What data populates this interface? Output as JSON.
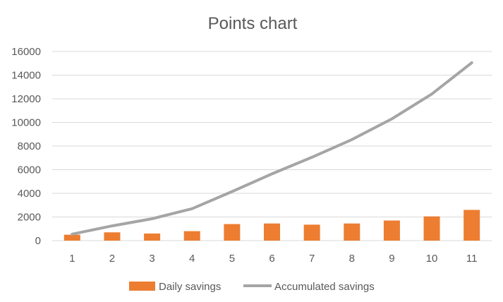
{
  "chart_data": {
    "type": "bar",
    "title": "Points chart",
    "xlabel": "",
    "ylabel": "",
    "categories": [
      "1",
      "2",
      "3",
      "4",
      "5",
      "6",
      "7",
      "8",
      "9",
      "10",
      "11"
    ],
    "ylim": [
      0,
      16000
    ],
    "yticks": [
      "0",
      "2000",
      "4000",
      "6000",
      "8000",
      "10000",
      "12000",
      "14000",
      "16000"
    ],
    "grid": true,
    "legend_position": "bottom",
    "series": [
      {
        "name": "Daily savings",
        "type": "bar",
        "color": "#ED7D31",
        "values": [
          500,
          700,
          600,
          800,
          1400,
          1450,
          1350,
          1450,
          1700,
          2050,
          2600
        ]
      },
      {
        "name": "Accumulated savings",
        "type": "line",
        "color": "#A5A5A5",
        "values": [
          550,
          1250,
          1850,
          2700,
          4150,
          5650,
          7050,
          8550,
          10300,
          12400,
          15050
        ]
      }
    ]
  }
}
